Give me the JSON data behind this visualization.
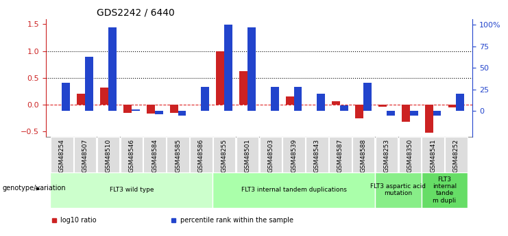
{
  "title": "GDS2242 / 6440",
  "samples": [
    "GSM48254",
    "GSM48507",
    "GSM48510",
    "GSM48546",
    "GSM48584",
    "GSM48585",
    "GSM48586",
    "GSM48255",
    "GSM48501",
    "GSM48503",
    "GSM48539",
    "GSM48543",
    "GSM48587",
    "GSM48588",
    "GSM48253",
    "GSM48350",
    "GSM48541",
    "GSM48252"
  ],
  "log10_ratio": [
    0.0,
    0.2,
    0.32,
    -0.15,
    -0.17,
    -0.15,
    0.0,
    1.0,
    0.62,
    0.0,
    0.16,
    0.0,
    0.07,
    -0.25,
    -0.04,
    -0.32,
    -0.52,
    -0.05
  ],
  "percentile_rank": [
    33,
    63,
    97,
    2,
    -4,
    -5,
    28,
    100,
    97,
    28,
    28,
    20,
    7,
    33,
    -5,
    -5,
    -5,
    20
  ],
  "groups": [
    {
      "label": "FLT3 wild type",
      "start": 0,
      "end": 7,
      "color": "#ccffcc"
    },
    {
      "label": "FLT3 internal tandem duplications",
      "start": 7,
      "end": 14,
      "color": "#aaffaa"
    },
    {
      "label": "FLT3 aspartic acid\nmutation",
      "start": 14,
      "end": 16,
      "color": "#88ee88"
    },
    {
      "label": "FLT3\ninternal\ntande\nm dupli",
      "start": 16,
      "end": 18,
      "color": "#66dd66"
    }
  ],
  "ylim_left": [
    -0.6,
    1.6
  ],
  "yticks_left": [
    -0.5,
    0.0,
    0.5,
    1.0,
    1.5
  ],
  "ylim_right": [
    -30,
    107
  ],
  "yticks_right": [
    0,
    25,
    50,
    75,
    100
  ],
  "ytick_labels_right": [
    "0",
    "25",
    "50",
    "75",
    "100%"
  ],
  "red_color": "#cc2222",
  "blue_color": "#2244cc",
  "bar_width": 0.35,
  "legend_items": [
    {
      "label": "log10 ratio",
      "color": "#cc2222"
    },
    {
      "label": "percentile rank within the sample",
      "color": "#2244cc"
    }
  ]
}
